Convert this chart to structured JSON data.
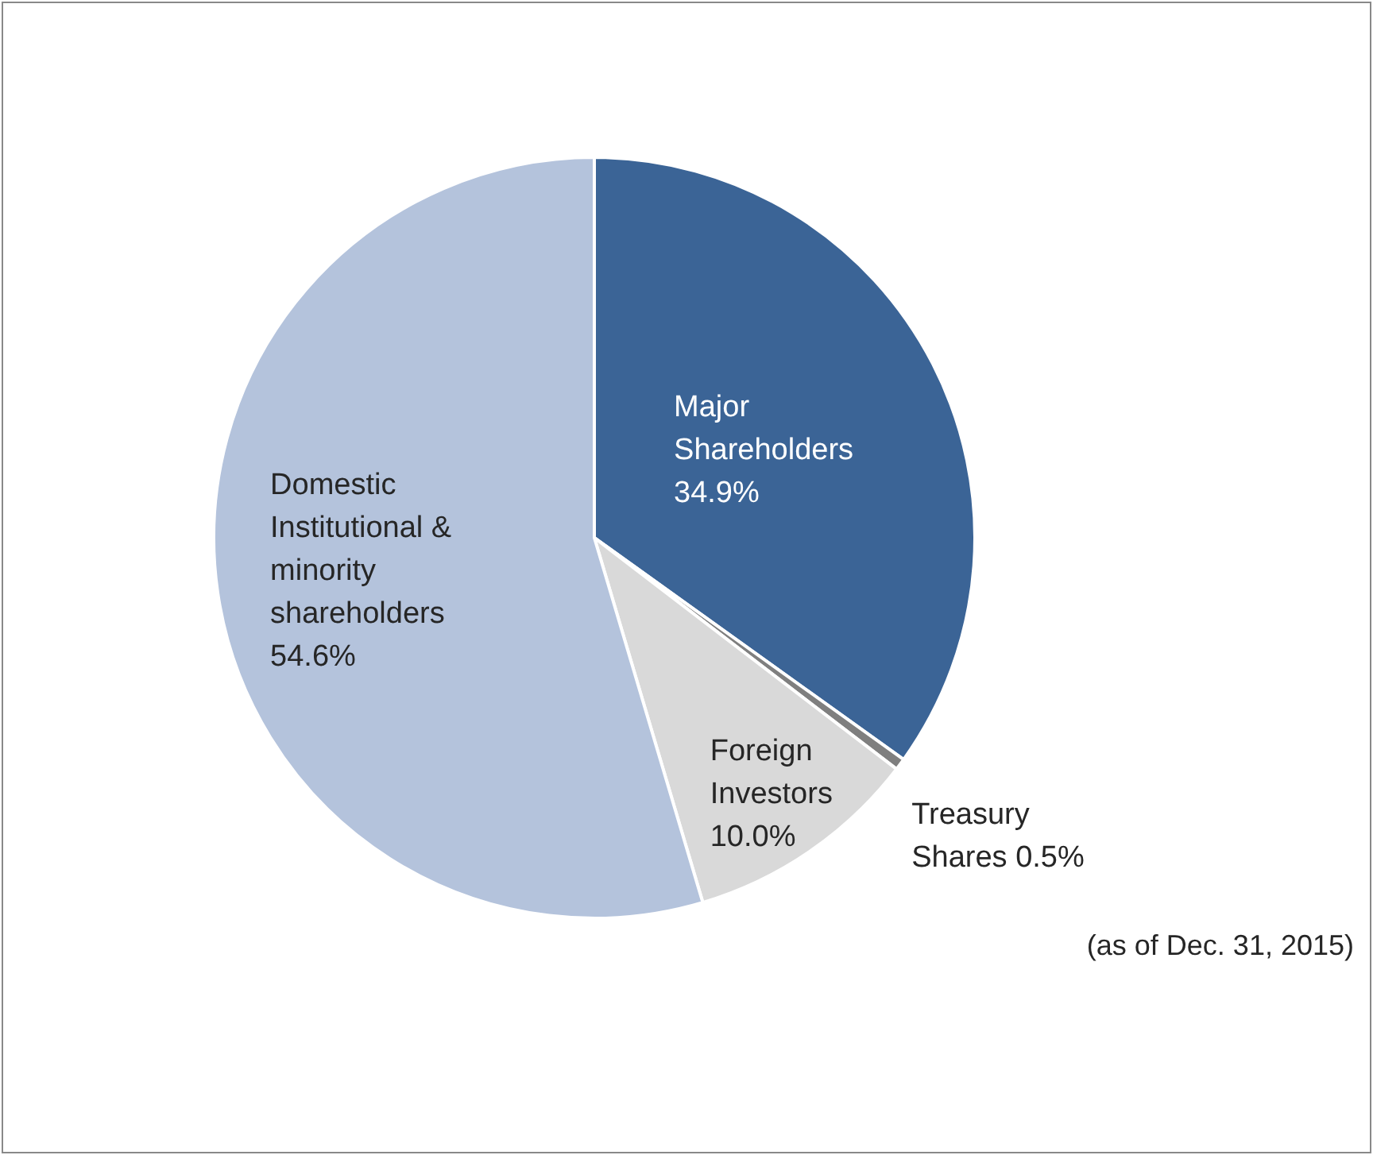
{
  "chart_data": {
    "type": "pie",
    "categories": [
      "Major Shareholders",
      "Treasury Shares",
      "Foreign Investors",
      "Domestic Institutional & minority shareholders"
    ],
    "values": [
      34.9,
      0.5,
      10.0,
      54.6
    ],
    "value_labels": [
      "34.9%",
      "0.5%",
      "10.0%",
      "54.6%"
    ],
    "colors": [
      "#3b6496",
      "#7f7f7f",
      "#d9d9d9",
      "#b4c3dc"
    ],
    "legend": false,
    "annotations": [
      "(as of Dec. 31, 2015)"
    ]
  }
}
